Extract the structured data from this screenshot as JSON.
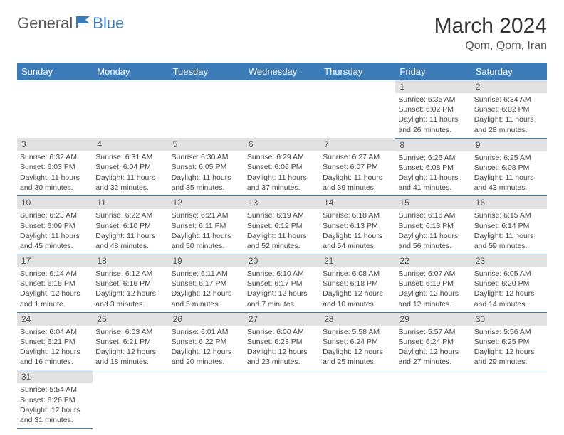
{
  "logo": {
    "part1": "General",
    "part2": "Blue"
  },
  "title": "March 2024",
  "location": "Qom, Qom, Iran",
  "colors": {
    "header_bg": "#3b7bb8",
    "header_text": "#ffffff",
    "daynum_bg": "#e2e2e2",
    "border": "#3b7bb8",
    "text": "#444444"
  },
  "weekdays": [
    "Sunday",
    "Monday",
    "Tuesday",
    "Wednesday",
    "Thursday",
    "Friday",
    "Saturday"
  ],
  "weeks": [
    [
      null,
      null,
      null,
      null,
      null,
      {
        "n": "1",
        "sunrise": "Sunrise: 6:35 AM",
        "sunset": "Sunset: 6:02 PM",
        "daylight": "Daylight: 11 hours and 26 minutes."
      },
      {
        "n": "2",
        "sunrise": "Sunrise: 6:34 AM",
        "sunset": "Sunset: 6:02 PM",
        "daylight": "Daylight: 11 hours and 28 minutes."
      }
    ],
    [
      {
        "n": "3",
        "sunrise": "Sunrise: 6:32 AM",
        "sunset": "Sunset: 6:03 PM",
        "daylight": "Daylight: 11 hours and 30 minutes."
      },
      {
        "n": "4",
        "sunrise": "Sunrise: 6:31 AM",
        "sunset": "Sunset: 6:04 PM",
        "daylight": "Daylight: 11 hours and 32 minutes."
      },
      {
        "n": "5",
        "sunrise": "Sunrise: 6:30 AM",
        "sunset": "Sunset: 6:05 PM",
        "daylight": "Daylight: 11 hours and 35 minutes."
      },
      {
        "n": "6",
        "sunrise": "Sunrise: 6:29 AM",
        "sunset": "Sunset: 6:06 PM",
        "daylight": "Daylight: 11 hours and 37 minutes."
      },
      {
        "n": "7",
        "sunrise": "Sunrise: 6:27 AM",
        "sunset": "Sunset: 6:07 PM",
        "daylight": "Daylight: 11 hours and 39 minutes."
      },
      {
        "n": "8",
        "sunrise": "Sunrise: 6:26 AM",
        "sunset": "Sunset: 6:08 PM",
        "daylight": "Daylight: 11 hours and 41 minutes."
      },
      {
        "n": "9",
        "sunrise": "Sunrise: 6:25 AM",
        "sunset": "Sunset: 6:08 PM",
        "daylight": "Daylight: 11 hours and 43 minutes."
      }
    ],
    [
      {
        "n": "10",
        "sunrise": "Sunrise: 6:23 AM",
        "sunset": "Sunset: 6:09 PM",
        "daylight": "Daylight: 11 hours and 45 minutes."
      },
      {
        "n": "11",
        "sunrise": "Sunrise: 6:22 AM",
        "sunset": "Sunset: 6:10 PM",
        "daylight": "Daylight: 11 hours and 48 minutes."
      },
      {
        "n": "12",
        "sunrise": "Sunrise: 6:21 AM",
        "sunset": "Sunset: 6:11 PM",
        "daylight": "Daylight: 11 hours and 50 minutes."
      },
      {
        "n": "13",
        "sunrise": "Sunrise: 6:19 AM",
        "sunset": "Sunset: 6:12 PM",
        "daylight": "Daylight: 11 hours and 52 minutes."
      },
      {
        "n": "14",
        "sunrise": "Sunrise: 6:18 AM",
        "sunset": "Sunset: 6:13 PM",
        "daylight": "Daylight: 11 hours and 54 minutes."
      },
      {
        "n": "15",
        "sunrise": "Sunrise: 6:16 AM",
        "sunset": "Sunset: 6:13 PM",
        "daylight": "Daylight: 11 hours and 56 minutes."
      },
      {
        "n": "16",
        "sunrise": "Sunrise: 6:15 AM",
        "sunset": "Sunset: 6:14 PM",
        "daylight": "Daylight: 11 hours and 59 minutes."
      }
    ],
    [
      {
        "n": "17",
        "sunrise": "Sunrise: 6:14 AM",
        "sunset": "Sunset: 6:15 PM",
        "daylight": "Daylight: 12 hours and 1 minute."
      },
      {
        "n": "18",
        "sunrise": "Sunrise: 6:12 AM",
        "sunset": "Sunset: 6:16 PM",
        "daylight": "Daylight: 12 hours and 3 minutes."
      },
      {
        "n": "19",
        "sunrise": "Sunrise: 6:11 AM",
        "sunset": "Sunset: 6:17 PM",
        "daylight": "Daylight: 12 hours and 5 minutes."
      },
      {
        "n": "20",
        "sunrise": "Sunrise: 6:10 AM",
        "sunset": "Sunset: 6:17 PM",
        "daylight": "Daylight: 12 hours and 7 minutes."
      },
      {
        "n": "21",
        "sunrise": "Sunrise: 6:08 AM",
        "sunset": "Sunset: 6:18 PM",
        "daylight": "Daylight: 12 hours and 10 minutes."
      },
      {
        "n": "22",
        "sunrise": "Sunrise: 6:07 AM",
        "sunset": "Sunset: 6:19 PM",
        "daylight": "Daylight: 12 hours and 12 minutes."
      },
      {
        "n": "23",
        "sunrise": "Sunrise: 6:05 AM",
        "sunset": "Sunset: 6:20 PM",
        "daylight": "Daylight: 12 hours and 14 minutes."
      }
    ],
    [
      {
        "n": "24",
        "sunrise": "Sunrise: 6:04 AM",
        "sunset": "Sunset: 6:21 PM",
        "daylight": "Daylight: 12 hours and 16 minutes."
      },
      {
        "n": "25",
        "sunrise": "Sunrise: 6:03 AM",
        "sunset": "Sunset: 6:21 PM",
        "daylight": "Daylight: 12 hours and 18 minutes."
      },
      {
        "n": "26",
        "sunrise": "Sunrise: 6:01 AM",
        "sunset": "Sunset: 6:22 PM",
        "daylight": "Daylight: 12 hours and 20 minutes."
      },
      {
        "n": "27",
        "sunrise": "Sunrise: 6:00 AM",
        "sunset": "Sunset: 6:23 PM",
        "daylight": "Daylight: 12 hours and 23 minutes."
      },
      {
        "n": "28",
        "sunrise": "Sunrise: 5:58 AM",
        "sunset": "Sunset: 6:24 PM",
        "daylight": "Daylight: 12 hours and 25 minutes."
      },
      {
        "n": "29",
        "sunrise": "Sunrise: 5:57 AM",
        "sunset": "Sunset: 6:24 PM",
        "daylight": "Daylight: 12 hours and 27 minutes."
      },
      {
        "n": "30",
        "sunrise": "Sunrise: 5:56 AM",
        "sunset": "Sunset: 6:25 PM",
        "daylight": "Daylight: 12 hours and 29 minutes."
      }
    ],
    [
      {
        "n": "31",
        "sunrise": "Sunrise: 5:54 AM",
        "sunset": "Sunset: 6:26 PM",
        "daylight": "Daylight: 12 hours and 31 minutes."
      },
      null,
      null,
      null,
      null,
      null,
      null
    ]
  ]
}
